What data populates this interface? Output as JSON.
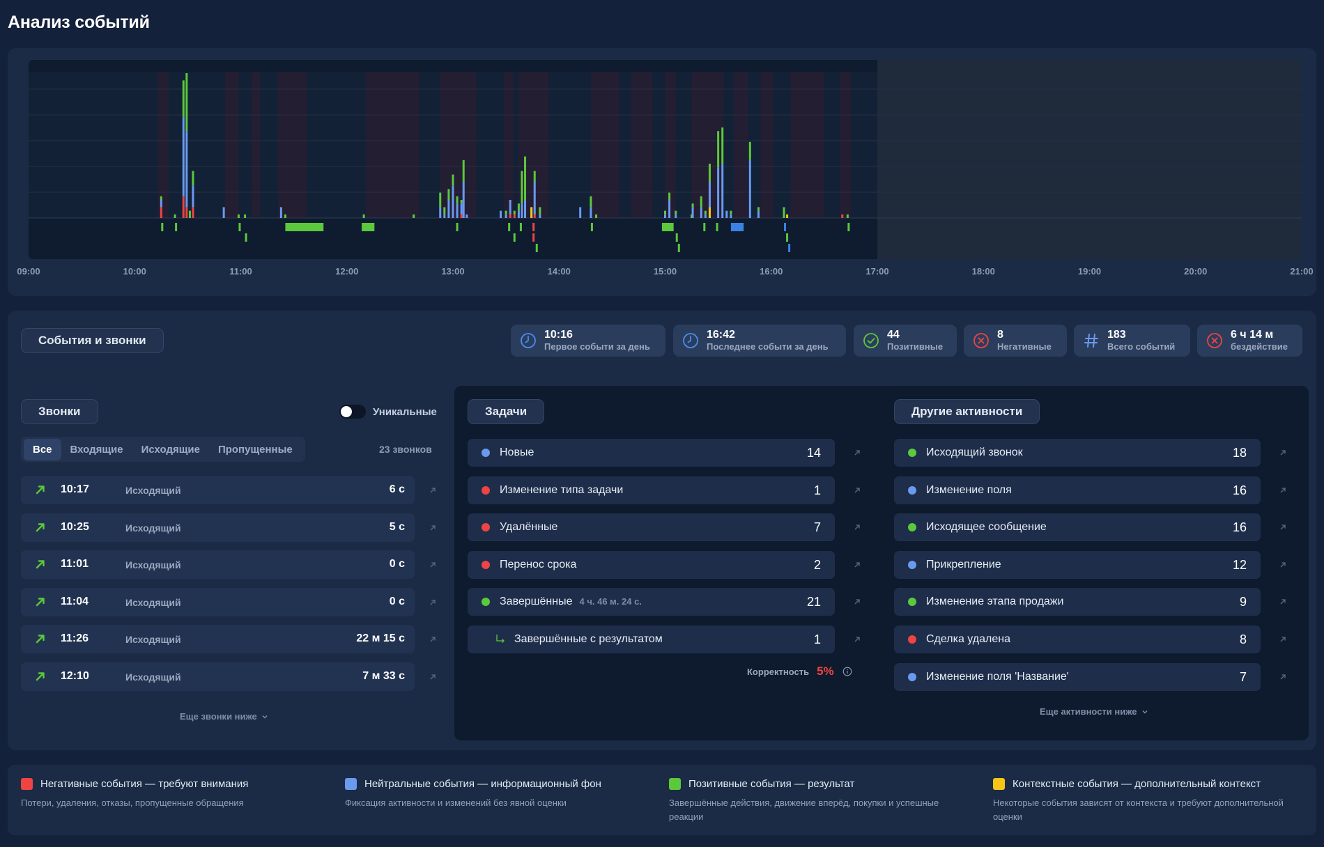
{
  "page_title": "Анализ событий",
  "timeline": {
    "start_hour": 9,
    "end_hour": 21,
    "now_hour": 17.0,
    "hour_labels": [
      "09:00",
      "10:00",
      "11:00",
      "12:00",
      "13:00",
      "14:00",
      "15:00",
      "16:00",
      "17:00",
      "18:00",
      "19:00",
      "20:00",
      "21:00"
    ],
    "idle_ranges": [
      [
        9.0,
        10.22
      ],
      [
        10.32,
        10.85
      ],
      [
        10.98,
        11.1
      ],
      [
        11.18,
        11.35
      ],
      [
        11.62,
        12.18
      ],
      [
        12.68,
        12.88
      ],
      [
        13.22,
        13.48
      ],
      [
        13.57,
        13.62
      ],
      [
        13.9,
        14.3
      ],
      [
        14.57,
        14.68
      ],
      [
        14.88,
        15.0
      ],
      [
        15.1,
        15.25
      ],
      [
        15.55,
        15.65
      ],
      [
        15.78,
        15.9
      ],
      [
        16.02,
        16.18
      ],
      [
        16.5,
        16.65
      ],
      [
        16.75,
        17.0
      ]
    ],
    "bars": [
      {
        "t": 10.25,
        "n": 3,
        "b": 2,
        "g": 1
      },
      {
        "t": 10.38,
        "n": 0,
        "b": 0,
        "g": 1
      },
      {
        "t": 10.46,
        "n": 6,
        "b": 22,
        "g": 10
      },
      {
        "t": 10.49,
        "n": 3,
        "b": 21,
        "g": 16
      },
      {
        "t": 10.52,
        "n": 0,
        "b": 0,
        "g": 2
      },
      {
        "t": 10.55,
        "n": 3,
        "b": 6,
        "g": 4
      },
      {
        "t": 10.84,
        "n": 0,
        "b": 3,
        "g": 0
      },
      {
        "t": 10.98,
        "n": 0,
        "b": 0,
        "g": 1
      },
      {
        "t": 11.04,
        "n": 0,
        "b": 0,
        "g": 1
      },
      {
        "t": 11.38,
        "n": 0,
        "b": 3,
        "g": 0
      },
      {
        "t": 11.42,
        "n": 0,
        "b": 0,
        "g": 1
      },
      {
        "t": 12.16,
        "n": 0,
        "b": 0,
        "g": 1
      },
      {
        "t": 12.63,
        "n": 0,
        "b": 0,
        "g": 1
      },
      {
        "t": 12.88,
        "n": 0,
        "b": 3,
        "g": 4
      },
      {
        "t": 12.92,
        "n": 0,
        "b": 1,
        "g": 2
      },
      {
        "t": 12.96,
        "n": 0,
        "b": 5,
        "g": 3
      },
      {
        "t": 13.0,
        "n": 0,
        "b": 9,
        "g": 3
      },
      {
        "t": 13.04,
        "n": 0,
        "b": 4,
        "g": 2
      },
      {
        "t": 13.08,
        "n": 1,
        "b": 3,
        "g": 1
      },
      {
        "t": 13.1,
        "n": 0,
        "b": 10,
        "g": 6
      },
      {
        "t": 13.13,
        "n": 0,
        "b": 1,
        "g": 0
      },
      {
        "t": 13.45,
        "n": 0,
        "b": 2,
        "g": 0
      },
      {
        "t": 13.5,
        "n": 0,
        "b": 1,
        "g": 1
      },
      {
        "t": 13.54,
        "n": 1,
        "b": 4,
        "g": 0
      },
      {
        "t": 13.58,
        "n": 1,
        "b": 0,
        "g": 1
      },
      {
        "t": 13.62,
        "n": 0,
        "b": 2,
        "g": 2
      },
      {
        "t": 13.65,
        "n": 0,
        "b": 4,
        "g": 9
      },
      {
        "t": 13.68,
        "n": 0,
        "b": 5,
        "g": 12
      },
      {
        "t": 13.74,
        "n": 0,
        "b": 2,
        "g": 1
      },
      {
        "t": 13.74,
        "y": 3
      },
      {
        "t": 13.77,
        "n": 1,
        "b": 9,
        "g": 3
      },
      {
        "t": 13.82,
        "n": 0,
        "b": 1,
        "g": 2
      },
      {
        "t": 14.2,
        "n": 0,
        "b": 3,
        "g": 0
      },
      {
        "t": 14.3,
        "n": 0,
        "b": 3,
        "g": 3
      },
      {
        "t": 14.35,
        "n": 0,
        "b": 0,
        "g": 1
      },
      {
        "t": 15.0,
        "n": 0,
        "b": 1,
        "g": 1
      },
      {
        "t": 15.04,
        "n": 0,
        "b": 5,
        "g": 2
      },
      {
        "t": 15.1,
        "n": 0,
        "b": 1,
        "g": 1
      },
      {
        "t": 15.25,
        "n": 0,
        "b": 0,
        "g": 1
      },
      {
        "t": 15.26,
        "n": 0,
        "b": 3,
        "g": 1
      },
      {
        "t": 15.34,
        "n": 0,
        "b": 3,
        "g": 3
      },
      {
        "t": 15.38,
        "n": 0,
        "b": 1,
        "g": 1
      },
      {
        "t": 15.42,
        "n": 0,
        "b": 10,
        "g": 5
      },
      {
        "t": 15.45,
        "n": 0,
        "b": 0,
        "g": 0
      },
      {
        "t": 15.42,
        "y": 3
      },
      {
        "t": 15.5,
        "n": 0,
        "b": 14,
        "g": 10
      },
      {
        "t": 15.54,
        "n": 0,
        "b": 15,
        "g": 10
      },
      {
        "t": 15.58,
        "n": 0,
        "b": 2,
        "g": 0
      },
      {
        "t": 15.62,
        "n": 0,
        "b": 1,
        "g": 1
      },
      {
        "t": 15.8,
        "n": 0,
        "b": 16,
        "g": 5
      },
      {
        "t": 15.88,
        "n": 0,
        "b": 2,
        "g": 1
      },
      {
        "t": 16.12,
        "n": 0,
        "b": 0,
        "g": 3
      },
      {
        "t": 16.15,
        "y": 1
      },
      {
        "t": 16.67,
        "n": 1,
        "b": 0,
        "g": 0
      },
      {
        "t": 16.72,
        "n": 0,
        "b": 0,
        "g": 1
      }
    ],
    "lane_marks": [
      {
        "t": 10.25,
        "lane": 0,
        "c": "g"
      },
      {
        "t": 10.38,
        "lane": 0,
        "c": "g"
      },
      {
        "t": 10.98,
        "lane": 0,
        "c": "g"
      },
      {
        "t": 11.04,
        "lane": 1,
        "c": "g"
      },
      {
        "t": 11.42,
        "lane": 0,
        "c": "g",
        "end": 11.78
      },
      {
        "t": 12.14,
        "lane": 0,
        "c": "g",
        "end": 12.26
      },
      {
        "t": 13.03,
        "lane": 0,
        "c": "g"
      },
      {
        "t": 13.52,
        "lane": 0,
        "c": "g"
      },
      {
        "t": 13.57,
        "lane": 1,
        "c": "g"
      },
      {
        "t": 13.63,
        "lane": 0,
        "c": "g"
      },
      {
        "t": 13.75,
        "lane": 0,
        "c": "n"
      },
      {
        "t": 13.75,
        "lane": 1,
        "c": "n"
      },
      {
        "t": 13.78,
        "lane": 2,
        "c": "g"
      },
      {
        "t": 14.3,
        "lane": 0,
        "c": "g"
      },
      {
        "t": 14.97,
        "lane": 0,
        "c": "g",
        "end": 15.08
      },
      {
        "t": 15.1,
        "lane": 1,
        "c": "g"
      },
      {
        "t": 15.12,
        "lane": 2,
        "c": "g"
      },
      {
        "t": 15.36,
        "lane": 0,
        "c": "g"
      },
      {
        "t": 15.48,
        "lane": 0,
        "c": "g"
      },
      {
        "t": 15.62,
        "lane": 0,
        "c": "b",
        "end": 15.74
      },
      {
        "t": 16.12,
        "lane": 0,
        "c": "b"
      },
      {
        "t": 16.14,
        "lane": 1,
        "c": "g"
      },
      {
        "t": 16.16,
        "lane": 2,
        "c": "b"
      },
      {
        "t": 16.72,
        "lane": 0,
        "c": "g"
      }
    ]
  },
  "events_section": {
    "title": "События и звонки",
    "stats": [
      {
        "value": "10:16",
        "label": "Первое событи за день",
        "icon": "clock-icon",
        "color": "#4b8df0"
      },
      {
        "value": "16:42",
        "label": "Последнее событи за день",
        "icon": "clock-icon",
        "color": "#4b8df0"
      },
      {
        "value": "44",
        "label": "Позитивные",
        "icon": "check-circle-icon",
        "color": "#5cc83b"
      },
      {
        "value": "8",
        "label": "Негативные",
        "icon": "x-circle-icon",
        "color": "#ef4444"
      },
      {
        "value": "183",
        "label": "Всего событий",
        "icon": "hash-icon",
        "color": "#6a9af0"
      },
      {
        "value": "6 ч 14 м",
        "label": "бездействие",
        "icon": "x-circle-icon",
        "color": "#ef4444"
      }
    ]
  },
  "calls": {
    "title": "Звонки",
    "unique_label": "Уникальные",
    "unique_on": false,
    "tabs": [
      "Все",
      "Входящие",
      "Исходящие",
      "Пропущенные"
    ],
    "active_tab": "Все",
    "count_label": "23 звонков",
    "rows": [
      {
        "time": "10:17",
        "direction": "Исходящий",
        "duration": "6 с"
      },
      {
        "time": "10:25",
        "direction": "Исходящий",
        "duration": "5 с"
      },
      {
        "time": "11:01",
        "direction": "Исходящий",
        "duration": "0 с"
      },
      {
        "time": "11:04",
        "direction": "Исходящий",
        "duration": "0 с"
      },
      {
        "time": "11:26",
        "direction": "Исходящий",
        "duration": "22 м 15 с"
      },
      {
        "time": "12:10",
        "direction": "Исходящий",
        "duration": "7 м 33 с"
      }
    ],
    "more_label": "Еще звонки ниже"
  },
  "tasks": {
    "title": "Задачи",
    "rows": [
      {
        "label": "Новые",
        "count": "14",
        "color": "#6a9af0"
      },
      {
        "label": "Изменение типа задачи",
        "count": "1",
        "color": "#ef4444"
      },
      {
        "label": "Удалённые",
        "count": "7",
        "color": "#ef4444"
      },
      {
        "label": "Перенос срока",
        "count": "2",
        "color": "#ef4444"
      },
      {
        "label": "Завершённые",
        "sub": "4 ч. 46 м. 24 с.",
        "count": "21",
        "color": "#5cc83b"
      }
    ],
    "sub_row": {
      "label": "Завершённые с результатом",
      "count": "1"
    },
    "correctness_label": "Корректность",
    "correctness_value": "5%"
  },
  "activities": {
    "title": "Другие активности",
    "rows": [
      {
        "label": "Исходящий звонок",
        "count": "18",
        "color": "#5cc83b"
      },
      {
        "label": "Изменение поля",
        "count": "16",
        "color": "#6a9af0"
      },
      {
        "label": "Исходящее сообщение",
        "count": "16",
        "color": "#5cc83b"
      },
      {
        "label": "Прикрепление",
        "count": "12",
        "color": "#6a9af0"
      },
      {
        "label": "Изменение этапа продажи",
        "count": "9",
        "color": "#5cc83b"
      },
      {
        "label": "Сделка удалена",
        "count": "8",
        "color": "#ef4444"
      },
      {
        "label": "Изменение поля 'Название'",
        "count": "7",
        "color": "#6a9af0"
      }
    ],
    "more_label": "Еще активности ниже"
  },
  "legend": [
    {
      "title": "Негативные события — требуют внимания",
      "desc": "Потери, удаления, отказы, пропущенные обращения",
      "color": "#ef4444"
    },
    {
      "title": "Нейтральные события — информационный фон",
      "desc": "Фиксация активности и изменений без явной оценки",
      "color": "#6a9af0"
    },
    {
      "title": "Позитивные события — результат",
      "desc": "Завершённые действия, движение вперёд, покупки и успешные реакции",
      "color": "#5cc83b"
    },
    {
      "title": "Контекстные события — дополнительный контекст",
      "desc": "Некоторые события зависят от контекста и требуют дополнительной оценки",
      "color": "#f5c518"
    }
  ],
  "colors": {
    "negative": "#ef4444",
    "neutral": "#6a9af0",
    "positive": "#5cc83b",
    "context": "#f5c518"
  }
}
